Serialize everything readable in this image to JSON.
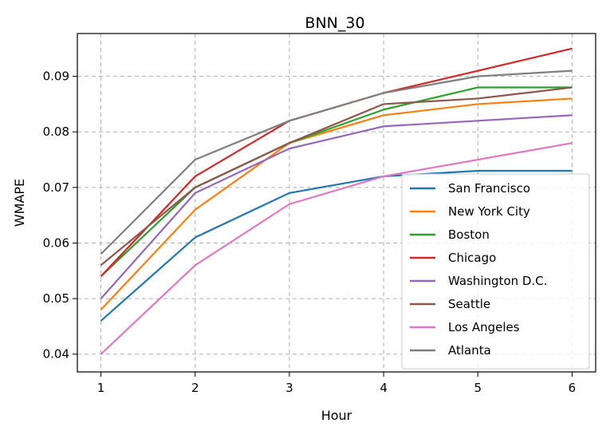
{
  "chart_data": {
    "type": "line",
    "title": "BNN_30",
    "xlabel": "Hour",
    "ylabel": "WMAPE",
    "x": [
      1,
      2,
      3,
      4,
      5,
      6
    ],
    "xlim": [
      0.75,
      6.25
    ],
    "ylim": [
      0.0368,
      0.0977
    ],
    "xticks": [
      "1",
      "2",
      "3",
      "4",
      "5",
      "6"
    ],
    "yticks": [
      "0.04",
      "0.05",
      "0.06",
      "0.07",
      "0.08",
      "0.09"
    ],
    "grid": true,
    "legend_position": "lower-right",
    "series": [
      {
        "name": "San Francisco",
        "color": "#1f77b4",
        "values": [
          0.046,
          0.061,
          0.069,
          0.072,
          0.073,
          0.073
        ]
      },
      {
        "name": "New York City",
        "color": "#ff7f0e",
        "values": [
          0.048,
          0.066,
          0.078,
          0.083,
          0.085,
          0.086
        ]
      },
      {
        "name": "Boston",
        "color": "#2ca02c",
        "values": [
          0.054,
          0.07,
          0.078,
          0.084,
          0.088,
          0.088
        ]
      },
      {
        "name": "Chicago",
        "color": "#d62728",
        "values": [
          0.054,
          0.072,
          0.082,
          0.087,
          0.091,
          0.095
        ]
      },
      {
        "name": "Washington D.C.",
        "color": "#9467bd",
        "values": [
          0.05,
          0.069,
          0.077,
          0.081,
          0.082,
          0.083
        ]
      },
      {
        "name": "Seattle",
        "color": "#8c564b",
        "values": [
          0.056,
          0.07,
          0.078,
          0.085,
          0.086,
          0.088
        ]
      },
      {
        "name": "Los Angeles",
        "color": "#e377c2",
        "values": [
          0.04,
          0.056,
          0.067,
          0.072,
          0.075,
          0.078
        ]
      },
      {
        "name": "Atlanta",
        "color": "#7f7f7f",
        "values": [
          0.058,
          0.075,
          0.082,
          0.087,
          0.09,
          0.091
        ]
      }
    ]
  }
}
